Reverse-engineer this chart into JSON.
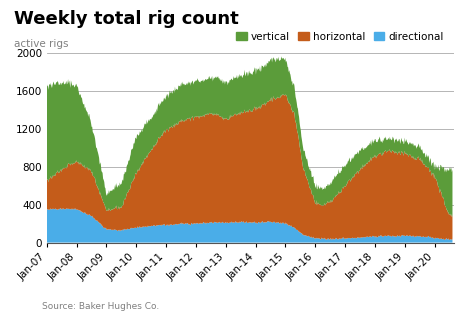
{
  "title": "Weekly total rig count",
  "ylabel": "active rigs",
  "source": "Source: Baker Hughes Co.",
  "ylim": [
    0,
    2000
  ],
  "yticks": [
    0,
    400,
    800,
    1200,
    1600,
    2000
  ],
  "colors": {
    "vertical": "#5b9c3a",
    "horizontal": "#c45c1a",
    "directional": "#4aade8"
  },
  "xtick_labels": [
    "Jan-07",
    "Jan-08",
    "Jan-09",
    "Jan-10",
    "Jan-11",
    "Jan-12",
    "Jan-13",
    "Jan-14",
    "Jan-15",
    "Jan-16",
    "Jan-17",
    "Jan-18",
    "Jan-19",
    "Jan-20"
  ],
  "t_anchors": [
    2007.0,
    2007.5,
    2008.0,
    2008.5,
    2009.0,
    2009.5,
    2010.0,
    2010.5,
    2011.0,
    2011.5,
    2012.0,
    2012.5,
    2013.0,
    2013.5,
    2014.0,
    2014.5,
    2015.0,
    2015.3,
    2015.6,
    2016.0,
    2016.3,
    2016.6,
    2017.0,
    2017.5,
    2018.0,
    2018.5,
    2019.0,
    2019.5,
    2020.0,
    2020.5
  ],
  "directional": [
    350,
    360,
    350,
    280,
    140,
    130,
    160,
    175,
    185,
    200,
    200,
    210,
    210,
    215,
    210,
    220,
    200,
    160,
    80,
    50,
    40,
    40,
    45,
    55,
    65,
    70,
    70,
    65,
    50,
    30
  ],
  "horizontal": [
    300,
    420,
    500,
    480,
    200,
    250,
    570,
    800,
    1000,
    1080,
    1120,
    1150,
    1100,
    1150,
    1200,
    1280,
    1360,
    1200,
    700,
    380,
    350,
    420,
    550,
    720,
    840,
    900,
    860,
    820,
    650,
    250
  ],
  "vertical": [
    1000,
    920,
    800,
    500,
    170,
    250,
    380,
    340,
    360,
    380,
    380,
    380,
    390,
    390,
    400,
    420,
    380,
    280,
    200,
    180,
    170,
    200,
    220,
    200,
    160,
    130,
    130,
    130,
    100,
    480
  ],
  "title_fontsize": 13,
  "label_fontsize": 7.5,
  "tick_fontsize": 7.5
}
